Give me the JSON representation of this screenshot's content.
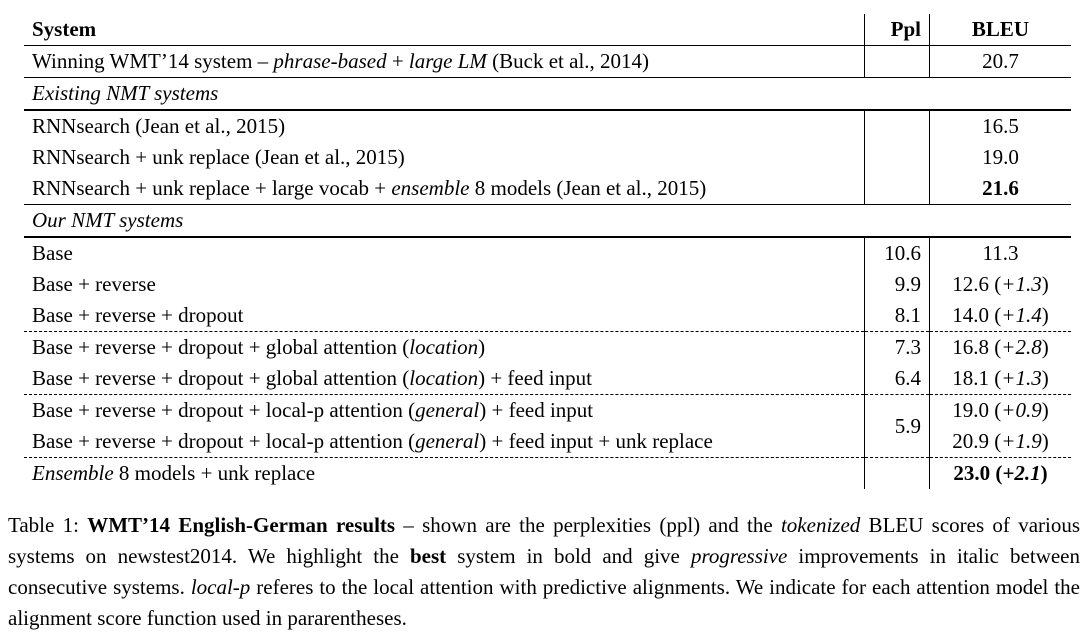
{
  "table": {
    "headers": {
      "system": "System",
      "ppl": "Ppl",
      "bleu": "BLEU"
    },
    "winning": {
      "pre": "Winning WMT’14 system – ",
      "it1": "phrase-based",
      "mid": " + ",
      "it2": "large LM",
      "post": " (Buck et al., 2014)",
      "bleu": "20.7"
    },
    "section_existing": "Existing NMT systems",
    "existing": [
      {
        "system": "RNNsearch (Jean et al., 2015)",
        "bleu": "16.5"
      },
      {
        "system": "RNNsearch + unk replace (Jean et al., 2015)",
        "bleu": "19.0"
      }
    ],
    "existing_ensemble": {
      "pre": "RNNsearch + unk replace + large vocab + ",
      "it": "ensemble",
      "post": " 8 models (Jean et al., 2015)",
      "bleu": "21.6"
    },
    "section_ours": "Our NMT systems",
    "ours_basic": [
      {
        "system": "Base",
        "ppl": "10.6",
        "bleu": "11.3",
        "gain": ""
      },
      {
        "system": "Base + reverse",
        "ppl": "9.9",
        "bleu": "12.6",
        "gain": "+1.3"
      },
      {
        "system": "Base + reverse + dropout",
        "ppl": "8.1",
        "bleu": "14.0",
        "gain": "+1.4"
      }
    ],
    "global_rows": [
      {
        "pre": "Base + reverse + dropout + global attention (",
        "it": "location",
        "post": ")",
        "ppl": "7.3",
        "bleu": "16.8",
        "gain": "+2.8"
      },
      {
        "pre": "Base + reverse + dropout + global attention (",
        "it": "location",
        "post": ") + feed input",
        "ppl": "6.4",
        "bleu": "18.1",
        "gain": "+1.3"
      }
    ],
    "local_rows": [
      {
        "pre": "Base + reverse + dropout + local-p attention (",
        "it": "general",
        "post": ") + feed input",
        "bleu": "19.0",
        "gain": "+0.9"
      },
      {
        "pre": "Base + reverse + dropout + local-p attention (",
        "it": "general",
        "post": ") + feed input + unk replace",
        "bleu": "20.9",
        "gain": "+1.9"
      }
    ],
    "local_ppl": "5.9",
    "final": {
      "it": "Ensemble",
      "post": " 8 models + unk replace",
      "bleu": "23.0",
      "gain": "+2.1"
    }
  },
  "caption": {
    "label": "Table 1: ",
    "bold_title": "WMT’14 English-German results",
    "t1": " – shown are the perplexities (ppl) and the ",
    "i1": "tokenized",
    "t2": " BLEU scores of various systems on newstest2014. We highlight the ",
    "b2": "best",
    "t3": " system in bold and give ",
    "i2": "progressive",
    "t4": " improvements in italic between consecutive systems. ",
    "i3": "local-p",
    "t5": " referes to the local attention with predictive alignments. We indicate for each attention model the alignment score function used in pararentheses."
  }
}
